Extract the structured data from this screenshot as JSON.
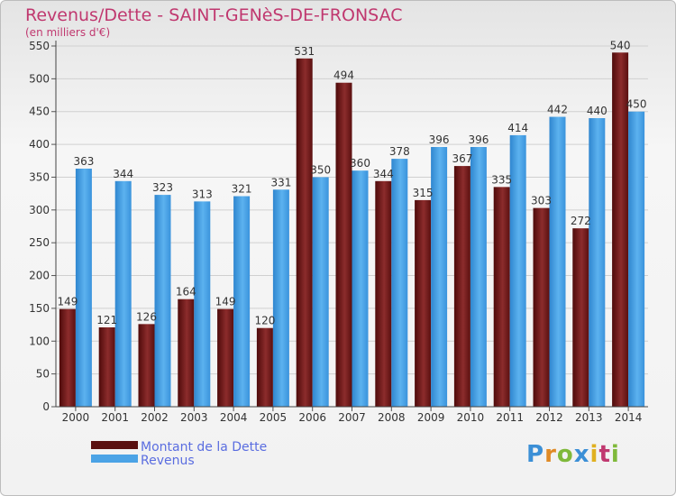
{
  "title": "Revenus/Dette - SAINT-GENèS-DE-FRONSAC",
  "subtitle": "(en milliers d'€)",
  "logo": {
    "letters": [
      "P",
      "r",
      "o",
      "x",
      "i",
      "t",
      "i"
    ],
    "colors": [
      "#3b8fd6",
      "#e08a25",
      "#7fb93a",
      "#3b8fd6",
      "#e0b020",
      "#c0386f",
      "#7fb93a"
    ]
  },
  "colors": {
    "dette": "#7a1f1f",
    "revenus": "#4ba3e6",
    "title": "#c0386f",
    "legend_text": "#5a6de0"
  },
  "chart_data": {
    "type": "bar",
    "title": "Revenus/Dette - SAINT-GENèS-DE-FRONSAC",
    "ylabel": "(en milliers d'€)",
    "categories": [
      "2000",
      "2001",
      "2002",
      "2003",
      "2004",
      "2005",
      "2006",
      "2007",
      "2008",
      "2009",
      "2010",
      "2011",
      "2012",
      "2013",
      "2014"
    ],
    "series": [
      {
        "name": "Montant de la Dette",
        "values": [
          149,
          121,
          126,
          164,
          149,
          120,
          531,
          494,
          344,
          315,
          367,
          335,
          303,
          272,
          540
        ]
      },
      {
        "name": "Revenus",
        "values": [
          363,
          344,
          323,
          313,
          321,
          331,
          350,
          360,
          378,
          396,
          396,
          414,
          442,
          440,
          450
        ]
      }
    ],
    "ylim": [
      0,
      550
    ],
    "yticks": [
      0,
      50,
      100,
      150,
      200,
      250,
      300,
      350,
      400,
      450,
      500,
      550
    ],
    "grid": true,
    "legend_position": "bottom-left"
  }
}
